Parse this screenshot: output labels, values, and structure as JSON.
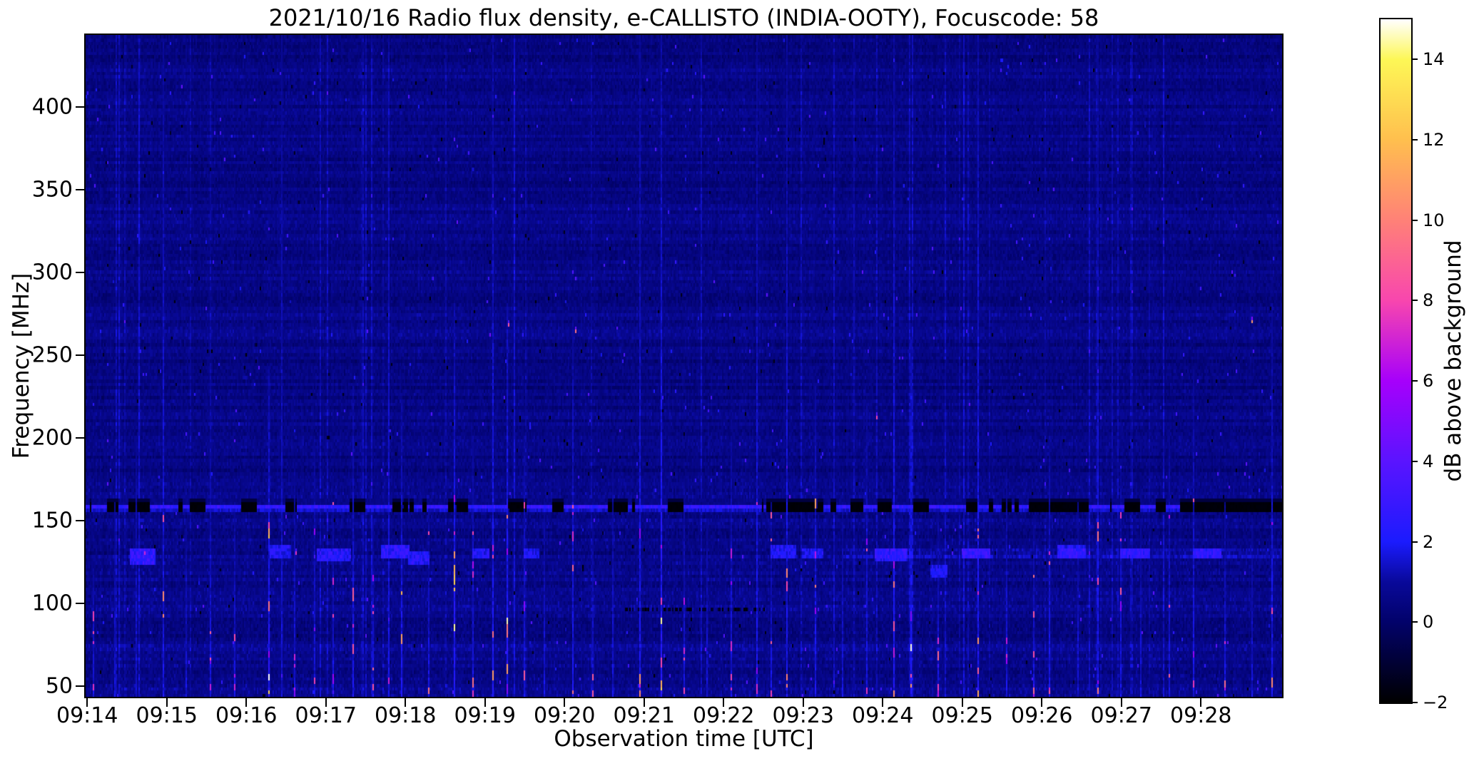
{
  "chart_data": {
    "type": "heatmap",
    "title": "2021/10/16  Radio flux density, e-CALLISTO (INDIA-OOTY), Focuscode: 58",
    "xlabel": "Observation time [UTC]",
    "ylabel": "Frequency [MHz]",
    "colorbar_label": "dB above background",
    "x_axis": {
      "tick_labels": [
        "09:14",
        "09:15",
        "09:16",
        "09:17",
        "09:18",
        "09:19",
        "09:20",
        "09:21",
        "09:22",
        "09:23",
        "09:24",
        "09:25",
        "09:26",
        "09:27",
        "09:28"
      ],
      "tick_minutes": [
        0,
        1,
        2,
        3,
        4,
        5,
        6,
        7,
        8,
        9,
        10,
        11,
        12,
        13,
        14
      ],
      "range_minutes": [
        -0.02,
        15.02
      ],
      "start_time": "09:14",
      "end_time": "09:29"
    },
    "y_axis": {
      "ticks": [
        50,
        100,
        150,
        200,
        250,
        300,
        350,
        400
      ],
      "range_mhz": [
        43.5,
        443.5
      ]
    },
    "colorbar": {
      "ticks": [
        -2,
        0,
        2,
        4,
        6,
        8,
        10,
        12,
        14
      ],
      "range_db": [
        -2,
        15
      ],
      "stops": [
        {
          "v": -2,
          "c": "#000000"
        },
        {
          "v": 0,
          "c": "#02026a"
        },
        {
          "v": 1,
          "c": "#09099a"
        },
        {
          "v": 2,
          "c": "#1b1bfe"
        },
        {
          "v": 4,
          "c": "#5a14ff"
        },
        {
          "v": 6,
          "c": "#a600fb"
        },
        {
          "v": 8,
          "c": "#f846ae"
        },
        {
          "v": 10,
          "c": "#ff8177"
        },
        {
          "v": 12,
          "c": "#ffbf4e"
        },
        {
          "v": 14,
          "c": "#fdf756"
        },
        {
          "v": 15,
          "c": "#ffffff"
        }
      ]
    },
    "background_db": 0.55,
    "seed": 20211016,
    "features": {
      "rfi_band_mhz": [
        157,
        163
      ],
      "rfi_band_black_segments_min": [
        [
          0.25,
          0.38
        ],
        [
          0.55,
          0.75
        ],
        [
          1.3,
          1.48
        ],
        [
          1.95,
          2.12
        ],
        [
          2.5,
          2.62
        ],
        [
          3.3,
          3.48
        ],
        [
          3.85,
          4.02
        ],
        [
          4.55,
          4.78
        ],
        [
          5.3,
          5.48
        ],
        [
          5.85,
          5.98
        ],
        [
          6.6,
          6.78
        ],
        [
          7.3,
          7.48
        ],
        [
          8.55,
          9.25
        ],
        [
          9.6,
          9.75
        ],
        [
          9.95,
          10.1
        ],
        [
          10.4,
          10.58
        ],
        [
          11.05,
          11.18
        ],
        [
          11.5,
          11.62
        ],
        [
          11.85,
          12.58
        ],
        [
          13.05,
          13.22
        ],
        [
          13.45,
          13.55
        ],
        [
          13.75,
          15.05
        ]
      ],
      "aircraft_patches": [
        [
          0.55,
          0.85,
          125,
          133,
          3.2
        ],
        [
          2.3,
          2.55,
          128,
          134,
          2.6
        ],
        [
          2.9,
          3.3,
          127,
          133,
          2.8
        ],
        [
          3.7,
          4.05,
          128,
          135,
          3.0
        ],
        [
          4.05,
          4.3,
          124,
          130,
          2.8
        ],
        [
          4.85,
          5.05,
          129,
          133,
          2.6
        ],
        [
          5.5,
          5.68,
          128,
          132,
          2.4
        ],
        [
          8.6,
          8.9,
          128,
          134,
          2.6
        ],
        [
          9.0,
          9.25,
          129,
          133,
          2.5
        ],
        [
          9.9,
          10.3,
          127,
          132,
          2.6
        ],
        [
          10.6,
          10.8,
          117,
          123,
          2.4
        ],
        [
          11.0,
          11.35,
          128,
          133,
          2.7
        ],
        [
          12.2,
          12.55,
          129,
          134,
          2.6
        ],
        [
          13.0,
          13.35,
          128,
          133,
          2.5
        ],
        [
          13.9,
          14.25,
          129,
          133,
          2.5
        ]
      ],
      "aviation_stripe": {
        "f": [
          128,
          132
        ],
        "t_start": 9.5,
        "amp": 0.8
      },
      "dark_row": {
        "f": 97,
        "t": [
          6.6,
          8.5
        ]
      },
      "streaks": [
        [
          0.08,
          120,
          0.5
        ],
        [
          0.35,
          160,
          0.35
        ],
        [
          0.62,
          200,
          0.4
        ],
        [
          0.95,
          440,
          0.55
        ],
        [
          1.25,
          150,
          0.4
        ],
        [
          1.55,
          210,
          0.45
        ],
        [
          1.85,
          160,
          0.5
        ],
        [
          2.28,
          240,
          0.9
        ],
        [
          2.45,
          443,
          0.4
        ],
        [
          2.6,
          180,
          0.5
        ],
        [
          2.85,
          200,
          0.45
        ],
        [
          3.1,
          160,
          0.5
        ],
        [
          3.35,
          230,
          0.6
        ],
        [
          3.6,
          150,
          0.45
        ],
        [
          3.8,
          443,
          0.5
        ],
        [
          3.95,
          220,
          0.7
        ],
        [
          4.3,
          160,
          0.5
        ],
        [
          4.62,
          280,
          0.9
        ],
        [
          4.85,
          200,
          0.5
        ],
        [
          5.1,
          443,
          0.65
        ],
        [
          5.28,
          280,
          0.95
        ],
        [
          5.5,
          200,
          0.5
        ],
        [
          5.75,
          160,
          0.4
        ],
        [
          6.1,
          270,
          0.6
        ],
        [
          6.35,
          150,
          0.45
        ],
        [
          6.6,
          180,
          0.4
        ],
        [
          6.95,
          443,
          0.6
        ],
        [
          7.22,
          443,
          0.9
        ],
        [
          7.5,
          170,
          0.45
        ],
        [
          7.8,
          150,
          0.4
        ],
        [
          8.1,
          200,
          0.5
        ],
        [
          8.42,
          443,
          0.55
        ],
        [
          8.6,
          160,
          0.45
        ],
        [
          8.8,
          443,
          0.6
        ],
        [
          9.15,
          230,
          0.65
        ],
        [
          9.5,
          160,
          0.4
        ],
        [
          9.8,
          220,
          0.5
        ],
        [
          10.15,
          443,
          0.7
        ],
        [
          10.35,
          260,
          0.85
        ],
        [
          10.7,
          160,
          0.45
        ],
        [
          11.2,
          443,
          0.8
        ],
        [
          11.55,
          180,
          0.5
        ],
        [
          11.9,
          150,
          0.45
        ],
        [
          12.1,
          200,
          0.6
        ],
        [
          12.45,
          160,
          0.4
        ],
        [
          12.7,
          443,
          0.55
        ],
        [
          13.0,
          180,
          0.5
        ],
        [
          13.25,
          150,
          0.4
        ],
        [
          13.6,
          200,
          0.45
        ],
        [
          13.9,
          240,
          0.5
        ],
        [
          14.3,
          160,
          0.45
        ],
        [
          14.65,
          150,
          0.4
        ],
        [
          14.9,
          280,
          0.6
        ]
      ],
      "hot_dots": [
        [
          14.64,
          270,
          11
        ],
        [
          6.15,
          264,
          9.5
        ],
        [
          5.3,
          268,
          8.5
        ],
        [
          9.93,
          213,
          8
        ],
        [
          2.62,
          130,
          7.5
        ],
        [
          0.72,
          130,
          7
        ],
        [
          14.9,
          95,
          8.5
        ]
      ]
    }
  }
}
